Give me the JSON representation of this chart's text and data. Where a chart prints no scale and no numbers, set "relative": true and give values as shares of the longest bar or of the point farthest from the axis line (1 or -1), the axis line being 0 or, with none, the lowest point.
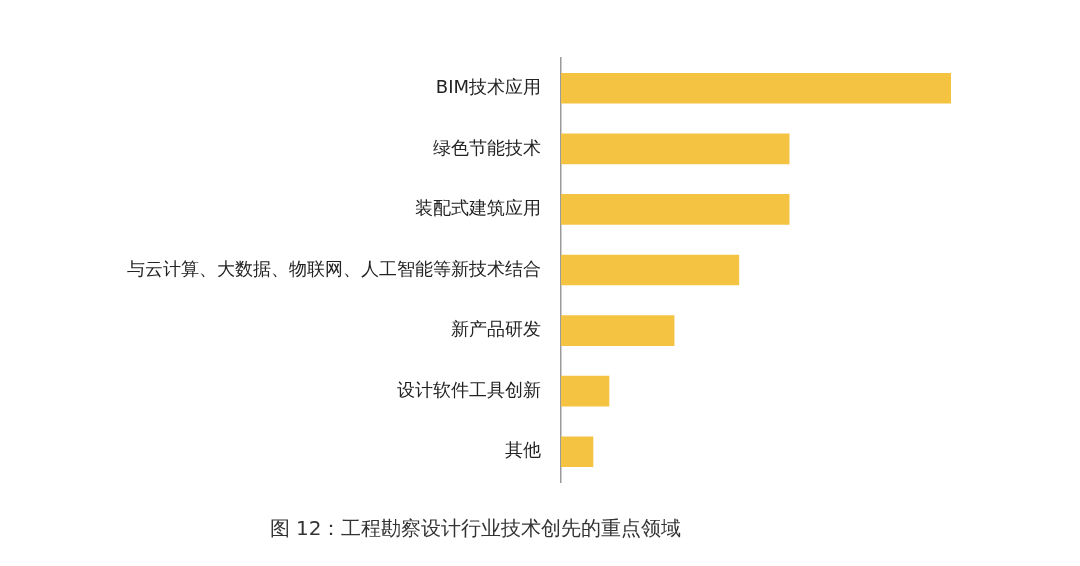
{
  "chart_data": {
    "type": "bar",
    "orientation": "horizontal",
    "relative": true,
    "title": "图 12：工程勘察设计行业技术创先的重点领域",
    "categories": [
      "BIM技术应用",
      "绿色节能技术",
      "装配式建筑应用",
      "与云计算、大数据、物联网、人工智能等新技术结合",
      "新产品研发",
      "设计软件工具创新",
      "其他"
    ],
    "values": [
      1,
      0.585,
      0.585,
      0.456,
      0.29,
      0.123,
      0.082
    ],
    "color": "#f5c342"
  }
}
